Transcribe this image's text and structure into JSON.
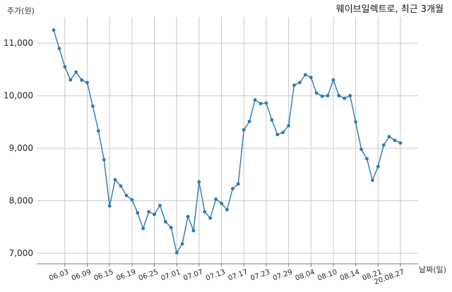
{
  "chart_data": {
    "type": "line",
    "title": "웨이브일렉트로, 최근 3개월",
    "ylabel": "주가(원)",
    "xlabel": "날짜(일)",
    "ylim": [
      6800,
      11500
    ],
    "yticks": [
      7000,
      8000,
      9000,
      10000,
      11000
    ],
    "ytick_labels": [
      "7,000",
      "8,000",
      "9,000",
      "10,000",
      "11,000"
    ],
    "xtick_labels": [
      "06.03",
      "06.09",
      "06.15",
      "06.19",
      "06.25",
      "07.01",
      "07.07",
      "07.13",
      "07.17",
      "07.23",
      "07.29",
      "08.04",
      "08.10",
      "08.14",
      "08.21",
      "20.08.27"
    ],
    "xtick_index": [
      2,
      6,
      10,
      14,
      18,
      22,
      26,
      30,
      34,
      38,
      42,
      46,
      50,
      54,
      58,
      62
    ],
    "grid": true,
    "color": "#2a7ab0",
    "series": [
      {
        "values": [
          11250,
          10900,
          10550,
          10300,
          10450,
          10300,
          10250,
          9800,
          9330,
          8780,
          7900,
          8400,
          8280,
          8100,
          8020,
          7770,
          7470,
          7790,
          7740,
          7910,
          7600,
          7490,
          7010,
          7180,
          7700,
          7430,
          8360,
          7790,
          7670,
          8030,
          7950,
          7830,
          8230,
          8320,
          9350,
          9510,
          9920,
          9850,
          9860,
          9540,
          9260,
          9300,
          9430,
          10200,
          10250,
          10400,
          10350,
          10050,
          9990,
          10000,
          10300,
          10000,
          9950,
          10000,
          9500,
          8980,
          8800,
          8390,
          8650,
          9060,
          9220,
          9150,
          9100
        ]
      }
    ]
  }
}
